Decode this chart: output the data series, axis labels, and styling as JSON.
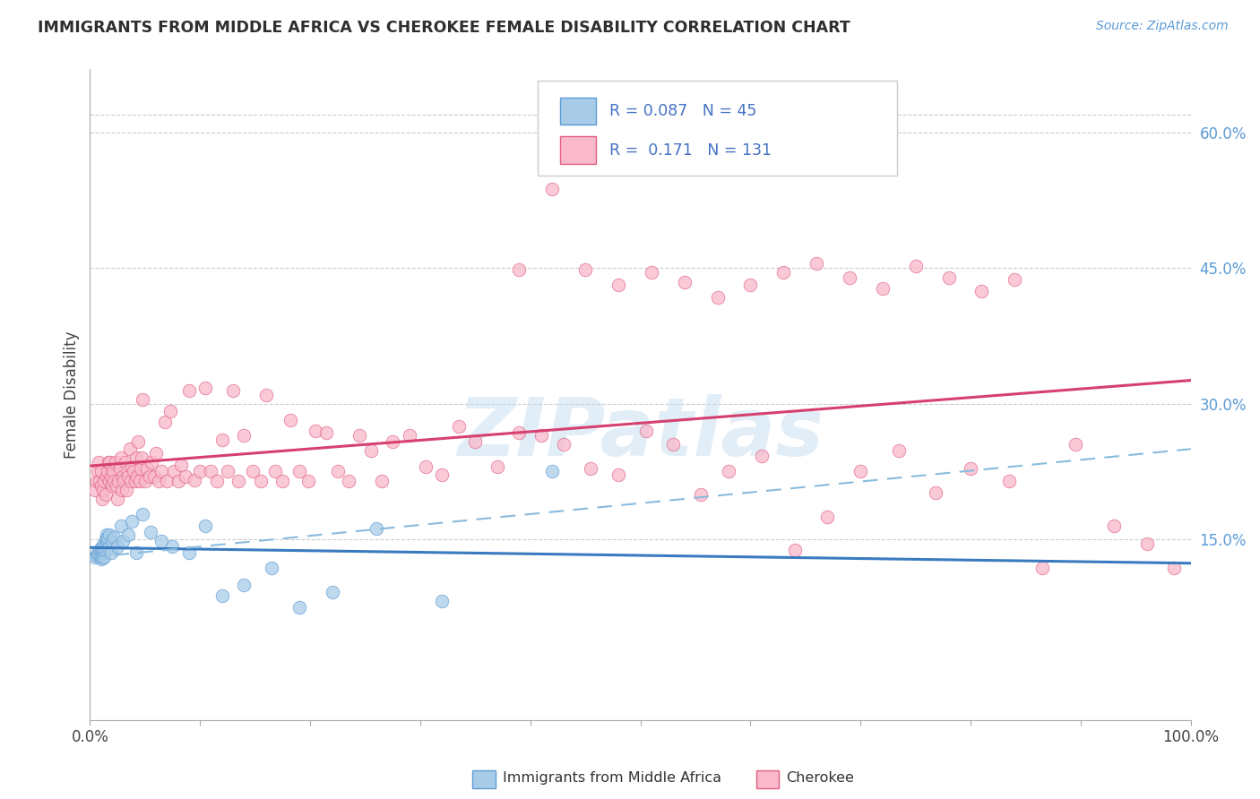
{
  "title": "IMMIGRANTS FROM MIDDLE AFRICA VS CHEROKEE FEMALE DISABILITY CORRELATION CHART",
  "source": "Source: ZipAtlas.com",
  "ylabel": "Female Disability",
  "xlim": [
    0.0,
    1.0
  ],
  "ylim": [
    -0.05,
    0.67
  ],
  "color_blue_fill": "#a8cce8",
  "color_blue_edge": "#5b9bd5",
  "color_blue_line": "#3a7abf",
  "color_pink_fill": "#f9b8cc",
  "color_pink_edge": "#e06080",
  "color_pink_line": "#d64070",
  "color_dashed": "#88bbdd",
  "watermark": "ZIPatlas",
  "r_blue": "0.087",
  "n_blue": "45",
  "r_pink": "0.171",
  "n_pink": "131",
  "blue_x": [
    0.005,
    0.006,
    0.007,
    0.008,
    0.009,
    0.01,
    0.01,
    0.01,
    0.011,
    0.011,
    0.012,
    0.012,
    0.013,
    0.013,
    0.014,
    0.014,
    0.015,
    0.015,
    0.016,
    0.016,
    0.017,
    0.018,
    0.019,
    0.02,
    0.022,
    0.025,
    0.028,
    0.03,
    0.035,
    0.038,
    0.042,
    0.048,
    0.055,
    0.065,
    0.075,
    0.09,
    0.105,
    0.12,
    0.14,
    0.165,
    0.19,
    0.22,
    0.26,
    0.32,
    0.42
  ],
  "blue_y": [
    0.13,
    0.132,
    0.135,
    0.133,
    0.138,
    0.135,
    0.14,
    0.128,
    0.142,
    0.13,
    0.135,
    0.14,
    0.145,
    0.13,
    0.15,
    0.138,
    0.145,
    0.155,
    0.148,
    0.152,
    0.14,
    0.155,
    0.135,
    0.148,
    0.152,
    0.142,
    0.165,
    0.148,
    0.155,
    0.17,
    0.135,
    0.178,
    0.158,
    0.148,
    0.142,
    0.135,
    0.165,
    0.088,
    0.1,
    0.118,
    0.075,
    0.092,
    0.162,
    0.082,
    0.225
  ],
  "pink_x": [
    0.005,
    0.006,
    0.007,
    0.008,
    0.009,
    0.01,
    0.01,
    0.011,
    0.012,
    0.013,
    0.014,
    0.015,
    0.016,
    0.017,
    0.018,
    0.018,
    0.019,
    0.02,
    0.021,
    0.022,
    0.023,
    0.024,
    0.025,
    0.026,
    0.027,
    0.028,
    0.029,
    0.03,
    0.031,
    0.032,
    0.033,
    0.034,
    0.035,
    0.036,
    0.037,
    0.038,
    0.04,
    0.041,
    0.042,
    0.043,
    0.044,
    0.045,
    0.046,
    0.047,
    0.048,
    0.05,
    0.052,
    0.054,
    0.056,
    0.058,
    0.06,
    0.062,
    0.065,
    0.068,
    0.07,
    0.073,
    0.076,
    0.08,
    0.083,
    0.087,
    0.09,
    0.095,
    0.1,
    0.105,
    0.11,
    0.115,
    0.12,
    0.125,
    0.13,
    0.135,
    0.14,
    0.148,
    0.155,
    0.16,
    0.168,
    0.175,
    0.182,
    0.19,
    0.198,
    0.205,
    0.215,
    0.225,
    0.235,
    0.245,
    0.255,
    0.265,
    0.275,
    0.29,
    0.305,
    0.32,
    0.335,
    0.35,
    0.37,
    0.39,
    0.41,
    0.43,
    0.455,
    0.48,
    0.505,
    0.53,
    0.555,
    0.58,
    0.61,
    0.64,
    0.67,
    0.7,
    0.735,
    0.768,
    0.8,
    0.835,
    0.865,
    0.895,
    0.93,
    0.96,
    0.985,
    0.39,
    0.42,
    0.45,
    0.48,
    0.51,
    0.54,
    0.57,
    0.6,
    0.63,
    0.66,
    0.69,
    0.72,
    0.75,
    0.78,
    0.81,
    0.84
  ],
  "pink_y": [
    0.205,
    0.215,
    0.225,
    0.235,
    0.215,
    0.21,
    0.225,
    0.195,
    0.205,
    0.215,
    0.2,
    0.22,
    0.225,
    0.235,
    0.215,
    0.235,
    0.22,
    0.21,
    0.225,
    0.215,
    0.235,
    0.21,
    0.195,
    0.215,
    0.228,
    0.24,
    0.205,
    0.22,
    0.215,
    0.235,
    0.205,
    0.225,
    0.22,
    0.25,
    0.215,
    0.23,
    0.225,
    0.215,
    0.24,
    0.22,
    0.258,
    0.215,
    0.228,
    0.24,
    0.305,
    0.215,
    0.228,
    0.22,
    0.235,
    0.22,
    0.245,
    0.215,
    0.225,
    0.28,
    0.215,
    0.292,
    0.225,
    0.215,
    0.232,
    0.22,
    0.315,
    0.216,
    0.225,
    0.318,
    0.225,
    0.215,
    0.26,
    0.225,
    0.315,
    0.215,
    0.265,
    0.225,
    0.215,
    0.31,
    0.225,
    0.215,
    0.282,
    0.225,
    0.215,
    0.27,
    0.268,
    0.225,
    0.215,
    0.265,
    0.248,
    0.215,
    0.258,
    0.265,
    0.23,
    0.222,
    0.275,
    0.258,
    0.23,
    0.268,
    0.265,
    0.255,
    0.228,
    0.222,
    0.27,
    0.255,
    0.2,
    0.225,
    0.242,
    0.138,
    0.175,
    0.225,
    0.248,
    0.202,
    0.228,
    0.215,
    0.118,
    0.255,
    0.165,
    0.145,
    0.118,
    0.448,
    0.538,
    0.448,
    0.432,
    0.445,
    0.435,
    0.418,
    0.432,
    0.445,
    0.455,
    0.44,
    0.428,
    0.452,
    0.44,
    0.425,
    0.438
  ]
}
